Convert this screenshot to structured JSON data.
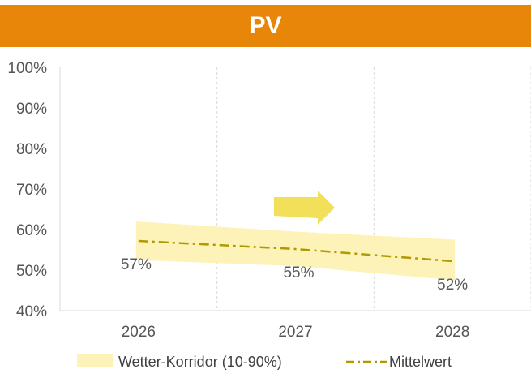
{
  "chart_data": {
    "type": "line",
    "title": "PV",
    "categories": [
      "2026",
      "2027",
      "2028"
    ],
    "series": [
      {
        "name": "Wetter-Korridor (10-90%)",
        "kind": "band",
        "lower": [
          52.5,
          51,
          47.5
        ],
        "upper": [
          62,
          59.5,
          57.5
        ]
      },
      {
        "name": "Mittelwert",
        "kind": "line",
        "style": "dash-dot",
        "values": [
          57.2,
          55.2,
          52.2
        ],
        "data_labels": [
          "57%",
          "55%",
          "52%"
        ]
      }
    ],
    "y_ticks": [
      "40%",
      "50%",
      "60%",
      "70%",
      "80%",
      "90%",
      "100%"
    ],
    "ylim": [
      40,
      100
    ],
    "grid": "vertical-dashed",
    "legend_position": "bottom",
    "colors": {
      "header": "#e8860a",
      "band": "#fdf3b8",
      "line": "#b09a00",
      "arrow": "#f2df5a"
    },
    "annotation": {
      "type": "arrow",
      "direction": "right",
      "icon": "arrow-right-icon"
    }
  }
}
